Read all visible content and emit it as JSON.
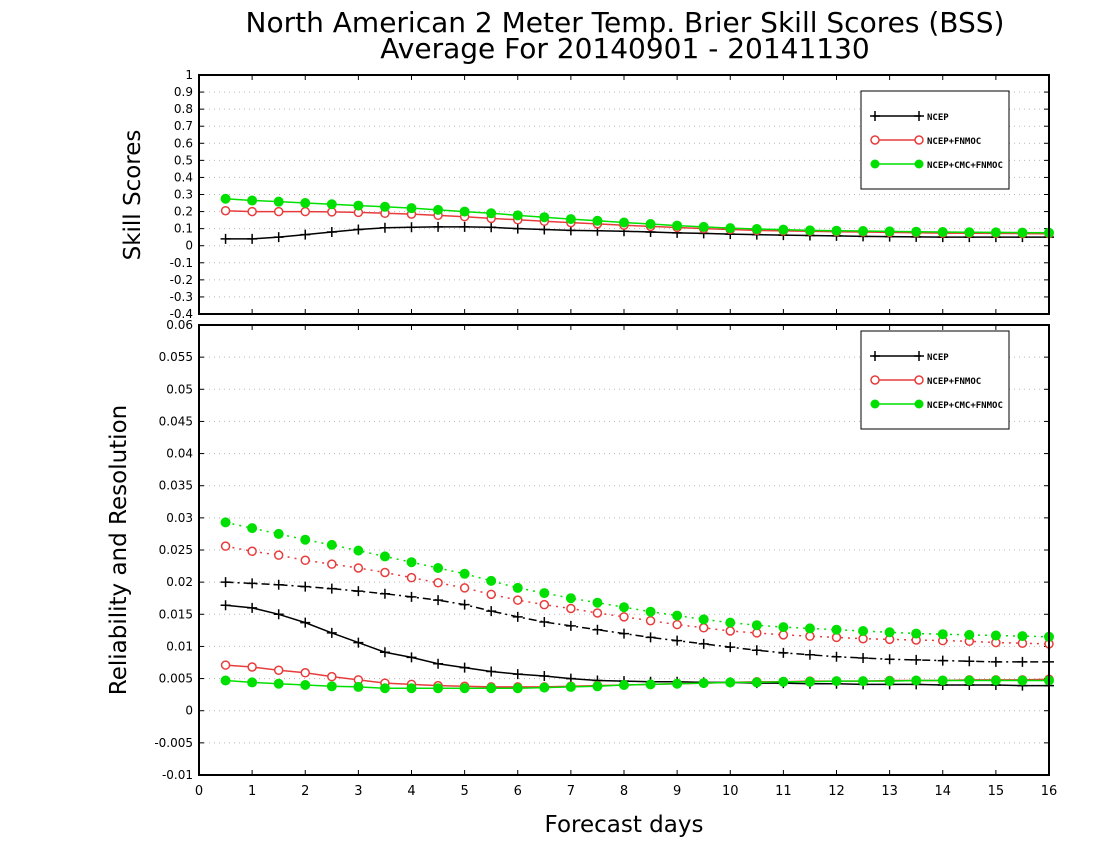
{
  "chart_data": [
    {
      "type": "line",
      "title": "North American 2 Meter Temp. Brier Skill Scores (BSS)",
      "subtitle": "Average For 20140901 - 20141130",
      "ylabel": "Skill Scores",
      "xlim": [
        0,
        16
      ],
      "ylim": [
        -0.4,
        1
      ],
      "yticks": [
        "1",
        "0.9",
        "0.8",
        "0.7",
        "0.6",
        "0.5",
        "0.4",
        "0.3",
        "0.2",
        "0.1",
        "0",
        "-0.1",
        "-0.2",
        "-0.3",
        "-0.4"
      ],
      "grid": true,
      "legend_position": "top-right",
      "legend": [
        "NCEP",
        "NCEP+FNMOC",
        "NCEP+CMC+FNMOC"
      ],
      "x": [
        0.5,
        1,
        1.5,
        2,
        2.5,
        3,
        3.5,
        4,
        4.5,
        5,
        5.5,
        6,
        6.5,
        7,
        7.5,
        8,
        8.5,
        9,
        9.5,
        10,
        10.5,
        11,
        11.5,
        12,
        12.5,
        13,
        13.5,
        14,
        14.5,
        15,
        15.5,
        16
      ],
      "series": [
        {
          "name": "NCEP",
          "color": "#000000",
          "marker": "plus",
          "style": "solid",
          "values": [
            0.04,
            0.04,
            0.05,
            0.065,
            0.08,
            0.095,
            0.105,
            0.108,
            0.11,
            0.11,
            0.108,
            0.1,
            0.095,
            0.09,
            0.088,
            0.085,
            0.08,
            0.075,
            0.072,
            0.068,
            0.065,
            0.062,
            0.06,
            0.058,
            0.055,
            0.053,
            0.052,
            0.05,
            0.05,
            0.05,
            0.05,
            0.05
          ]
        },
        {
          "name": "NCEP+FNMOC",
          "color": "#e83c3c",
          "marker": "open-circle",
          "style": "solid",
          "values": [
            0.205,
            0.2,
            0.2,
            0.2,
            0.198,
            0.195,
            0.19,
            0.185,
            0.178,
            0.17,
            0.16,
            0.152,
            0.143,
            0.135,
            0.128,
            0.12,
            0.113,
            0.107,
            0.1,
            0.095,
            0.09,
            0.087,
            0.085,
            0.082,
            0.08,
            0.078,
            0.076,
            0.074,
            0.073,
            0.072,
            0.071,
            0.07
          ]
        },
        {
          "name": "NCEP+CMC+FNMOC",
          "color": "#00e000",
          "marker": "filled-circle",
          "style": "solid",
          "values": [
            0.275,
            0.265,
            0.258,
            0.25,
            0.243,
            0.235,
            0.228,
            0.22,
            0.21,
            0.2,
            0.19,
            0.178,
            0.167,
            0.156,
            0.146,
            0.136,
            0.127,
            0.118,
            0.11,
            0.103,
            0.098,
            0.094,
            0.09,
            0.088,
            0.086,
            0.084,
            0.082,
            0.08,
            0.079,
            0.078,
            0.077,
            0.076
          ]
        }
      ]
    },
    {
      "type": "line",
      "xlabel": "Forecast days",
      "ylabel": "Reliability and Resolution",
      "xlim": [
        0,
        16
      ],
      "ylim": [
        -0.01,
        0.06
      ],
      "yticks": [
        "0.06",
        "0.055",
        "0.05",
        "0.045",
        "0.04",
        "0.035",
        "0.03",
        "0.025",
        "0.02",
        "0.015",
        "0.01",
        "0.005",
        "0",
        "-0.005",
        "-0.01"
      ],
      "xticks": [
        "0",
        "1",
        "2",
        "3",
        "4",
        "5",
        "6",
        "7",
        "8",
        "9",
        "10",
        "11",
        "12",
        "13",
        "14",
        "15",
        "16"
      ],
      "grid": true,
      "legend_position": "top-right",
      "legend": [
        "NCEP",
        "NCEP+FNMOC",
        "NCEP+CMC+FNMOC"
      ],
      "x": [
        0.5,
        1,
        1.5,
        2,
        2.5,
        3,
        3.5,
        4,
        4.5,
        5,
        5.5,
        6,
        6.5,
        7,
        7.5,
        8,
        8.5,
        9,
        9.5,
        10,
        10.5,
        11,
        11.5,
        12,
        12.5,
        13,
        13.5,
        14,
        14.5,
        15,
        15.5,
        16
      ],
      "series": [
        {
          "name": "NCEP",
          "color": "#000000",
          "marker": "plus",
          "style": "solid",
          "values": [
            0.0164,
            0.016,
            0.015,
            0.0137,
            0.0121,
            0.0106,
            0.0091,
            0.0083,
            0.0073,
            0.0067,
            0.0061,
            0.0057,
            0.0054,
            0.005,
            0.0047,
            0.0046,
            0.0045,
            0.0045,
            0.0044,
            0.0044,
            0.0043,
            0.0043,
            0.0042,
            0.0042,
            0.0041,
            0.0041,
            0.0041,
            0.004,
            0.004,
            0.004,
            0.0039,
            0.0039
          ]
        },
        {
          "name": "NCEP",
          "color": "#000000",
          "marker": "plus",
          "style": "dashdot",
          "values": [
            0.02,
            0.0198,
            0.0196,
            0.0193,
            0.019,
            0.0186,
            0.0182,
            0.0177,
            0.0172,
            0.0165,
            0.0155,
            0.0146,
            0.0138,
            0.0132,
            0.0126,
            0.012,
            0.0114,
            0.0109,
            0.0104,
            0.0099,
            0.0094,
            0.009,
            0.0087,
            0.0084,
            0.0082,
            0.008,
            0.0079,
            0.0078,
            0.0077,
            0.0076,
            0.0076,
            0.0076
          ]
        },
        {
          "name": "NCEP+FNMOC",
          "color": "#e83c3c",
          "marker": "open-circle",
          "style": "solid",
          "values": [
            0.0071,
            0.0068,
            0.0063,
            0.0059,
            0.0053,
            0.0048,
            0.0043,
            0.0041,
            0.0039,
            0.0038,
            0.0037,
            0.0037,
            0.0037,
            0.0038,
            0.0039,
            0.004,
            0.0041,
            0.0042,
            0.0043,
            0.0044,
            0.0045,
            0.0045,
            0.0046,
            0.0046,
            0.0046,
            0.0047,
            0.0047,
            0.0047,
            0.0048,
            0.0048,
            0.0048,
            0.0049
          ]
        },
        {
          "name": "NCEP+FNMOC",
          "color": "#e83c3c",
          "marker": "open-circle",
          "style": "dotted",
          "values": [
            0.0256,
            0.0248,
            0.0242,
            0.0234,
            0.0228,
            0.0222,
            0.0215,
            0.0207,
            0.0199,
            0.0191,
            0.0181,
            0.0172,
            0.0165,
            0.0159,
            0.0152,
            0.0146,
            0.014,
            0.0134,
            0.0129,
            0.0124,
            0.0121,
            0.0118,
            0.0116,
            0.0114,
            0.0112,
            0.0111,
            0.011,
            0.0109,
            0.0108,
            0.0106,
            0.0105,
            0.0104
          ]
        },
        {
          "name": "NCEP+CMC+FNMOC",
          "color": "#00e000",
          "marker": "filled-circle",
          "style": "solid",
          "values": [
            0.0047,
            0.0044,
            0.0042,
            0.004,
            0.0038,
            0.0037,
            0.0035,
            0.0035,
            0.0035,
            0.0035,
            0.0035,
            0.0035,
            0.0036,
            0.0037,
            0.0038,
            0.004,
            0.0041,
            0.0042,
            0.0043,
            0.0044,
            0.0044,
            0.0045,
            0.0045,
            0.0046,
            0.0046,
            0.0046,
            0.0047,
            0.0047,
            0.0047,
            0.0047,
            0.0047,
            0.0047
          ]
        },
        {
          "name": "NCEP+CMC+FNMOC",
          "color": "#00e000",
          "marker": "filled-circle",
          "style": "dotted",
          "values": [
            0.0293,
            0.0284,
            0.0275,
            0.0266,
            0.0258,
            0.0249,
            0.024,
            0.0231,
            0.0222,
            0.0213,
            0.0202,
            0.0191,
            0.0183,
            0.0175,
            0.0168,
            0.0161,
            0.0154,
            0.0148,
            0.0142,
            0.0137,
            0.0133,
            0.013,
            0.0128,
            0.0126,
            0.0124,
            0.0122,
            0.012,
            0.0119,
            0.0118,
            0.0117,
            0.0116,
            0.0115
          ]
        }
      ]
    }
  ]
}
